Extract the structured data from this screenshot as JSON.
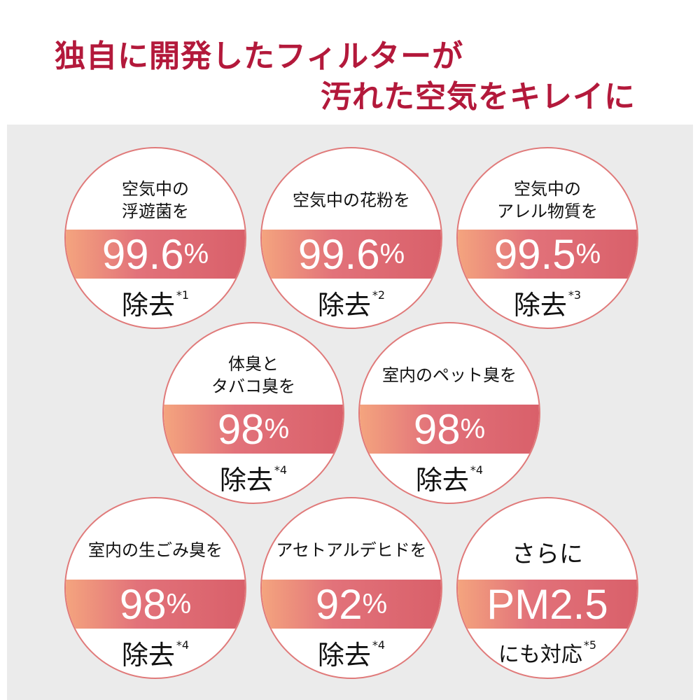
{
  "title": {
    "line1": "独自に開発したフィルターが",
    "line2": "汚れた空気をキレイに"
  },
  "accent_color": "#b3193b",
  "circles": [
    {
      "top": [
        "空気中の",
        "浮遊菌を"
      ],
      "value": "99.6",
      "unit": "%",
      "bottom": "除去",
      "note": "*1"
    },
    {
      "top": [
        "空気中の花粉を"
      ],
      "value": "99.6",
      "unit": "%",
      "bottom": "除去",
      "note": "*2"
    },
    {
      "top": [
        "空気中の",
        "アレル物質を"
      ],
      "value": "99.5",
      "unit": "%",
      "bottom": "除去",
      "note": "*3"
    },
    {
      "top": [
        "体臭と",
        "タバコ臭を"
      ],
      "value": "98",
      "unit": "%",
      "bottom": "除去",
      "note": "*4"
    },
    {
      "top": [
        "室内のペット臭を"
      ],
      "value": "98",
      "unit": "%",
      "bottom": "除去",
      "note": "*4"
    },
    {
      "top": [
        "室内の生ごみ臭を"
      ],
      "value": "98",
      "unit": "%",
      "bottom": "除去",
      "note": "*4"
    },
    {
      "top": [
        "アセトアルデヒドを"
      ],
      "value": "92",
      "unit": "%",
      "bottom": "除去",
      "note": "*4"
    },
    {
      "top": [
        "さらに"
      ],
      "value": "PM2.5",
      "unit": "",
      "bottom": "にも対応",
      "note": "*5"
    }
  ]
}
